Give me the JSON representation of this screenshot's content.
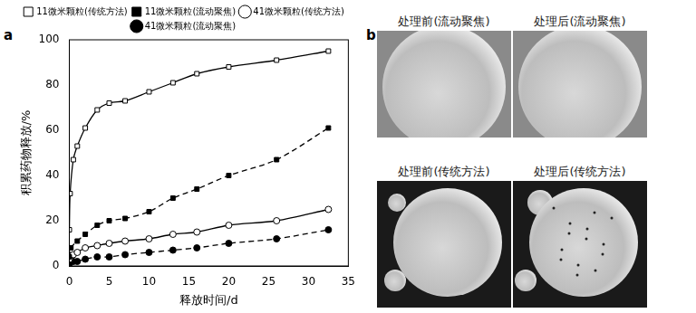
{
  "chart_data": {
    "type": "line",
    "x_label": "释放时间/d",
    "y_label": "积累药物释放/%",
    "xlim": [
      0,
      35
    ],
    "xticks": [
      0,
      5,
      10,
      15,
      20,
      25,
      30,
      35
    ],
    "ylim": [
      0,
      100
    ],
    "yticks": [
      0,
      20,
      40,
      60,
      80,
      100
    ],
    "grid": false,
    "legend": "top",
    "series": [
      {
        "name": "11微米颗粒(传统方法)",
        "color": "#000000",
        "marker": "square_open",
        "line_style": "solid",
        "x": [
          0,
          0.1,
          0.5,
          1,
          2,
          3.5,
          5,
          7,
          10,
          13,
          16,
          20,
          26,
          32.5
        ],
        "values": [
          16,
          32,
          47,
          53,
          61,
          69,
          72,
          73,
          77,
          81,
          85,
          88,
          91,
          95
        ]
      },
      {
        "name": "11微米颗粒(流动聚焦)",
        "color": "#000000",
        "marker": "square",
        "line_style": "dashed",
        "x": [
          0,
          0.2,
          1,
          2,
          3.5,
          5,
          7,
          10,
          13,
          16,
          20,
          26,
          32.5
        ],
        "values": [
          4,
          8,
          11,
          14,
          18,
          20,
          21,
          24,
          30,
          34,
          40,
          47,
          61
        ]
      },
      {
        "name": "41微米颗粒(传统方法)",
        "color": "#000000",
        "marker": "circle_open",
        "line_style": "solid",
        "x": [
          0,
          0.5,
          1,
          2,
          3.5,
          5,
          7,
          10,
          13,
          16,
          20,
          26,
          32.5
        ],
        "values": [
          3,
          5,
          6,
          8,
          9,
          10,
          11,
          12,
          14,
          15,
          18,
          20,
          25
        ]
      },
      {
        "name": "41微米颗粒(流动聚焦)",
        "color": "#000000",
        "marker": "circle",
        "line_style": "dashed",
        "x": [
          0,
          0.5,
          1,
          2,
          3.5,
          5,
          7,
          10,
          13,
          16,
          20,
          26,
          32.5
        ],
        "values": [
          1,
          2,
          2,
          3,
          4,
          4,
          5,
          6,
          7,
          8,
          10,
          12,
          16
        ]
      }
    ]
  },
  "panel_labels": [
    "a",
    "b"
  ],
  "micrographs": [
    {
      "label": "处理前(流动聚焦)"
    },
    {
      "label": "处理后(流动聚焦)"
    },
    {
      "label": "处理前(传统方法)"
    },
    {
      "label": "处理后(传统方法)"
    }
  ]
}
